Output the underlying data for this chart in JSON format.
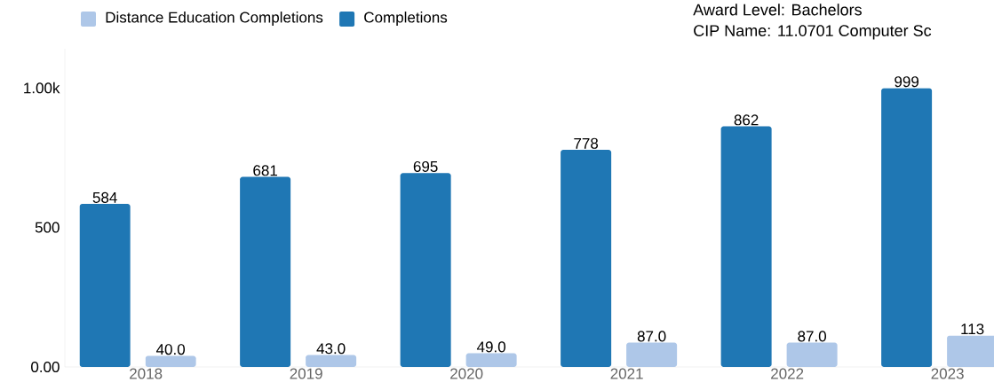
{
  "chart_data": {
    "type": "bar",
    "categories": [
      "2018",
      "2019",
      "2020",
      "2021",
      "2022",
      "2023"
    ],
    "series": [
      {
        "name": "Completions",
        "color": "#1f77b4",
        "values": [
          584,
          681,
          695,
          778,
          862,
          999
        ],
        "value_labels": [
          "584",
          "681",
          "695",
          "778",
          "862",
          "999"
        ]
      },
      {
        "name": "Distance Education Completions",
        "color": "#aec7e8",
        "values": [
          40,
          43,
          49,
          87,
          87,
          113
        ],
        "value_labels": [
          "40.0",
          "43.0",
          "49.0",
          "87.0",
          "87.0",
          "113"
        ]
      }
    ],
    "ylim": [
      0,
      1140
    ],
    "yticks": [
      {
        "value": 0,
        "label": "0.00"
      },
      500,
      {
        "value": 1000,
        "label": "1.00k"
      }
    ],
    "legend": "top left",
    "annotations": [
      "Award Level: Bachelors",
      "CIP Name: 11.0701 Computer Sc"
    ]
  }
}
